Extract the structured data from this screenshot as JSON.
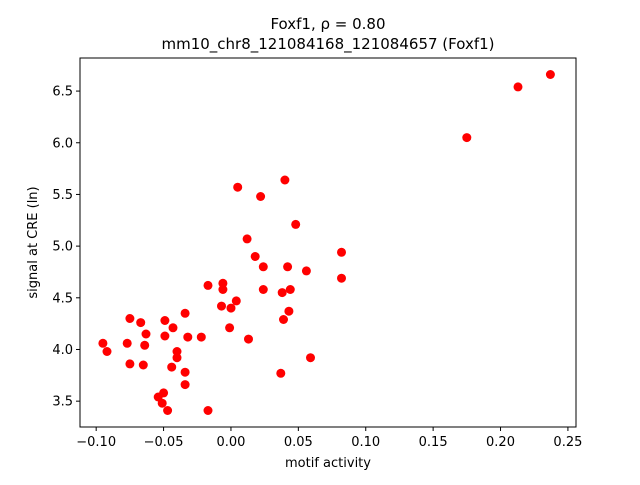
{
  "chart_data": {
    "type": "scatter",
    "title_line1": "Foxf1, ρ = 0.80",
    "title_line2": "mm10_chr8_121084168_121084657 (Foxf1)",
    "xlabel": "motif activity",
    "ylabel": "signal at CRE (ln)",
    "xlim": [
      -0.112,
      0.256
    ],
    "ylim": [
      3.25,
      6.82
    ],
    "x_ticks": [
      {
        "value": -0.1,
        "label": "−0.10"
      },
      {
        "value": -0.05,
        "label": "−0.05"
      },
      {
        "value": 0.0,
        "label": "0.00"
      },
      {
        "value": 0.05,
        "label": "0.05"
      },
      {
        "value": 0.1,
        "label": "0.10"
      },
      {
        "value": 0.15,
        "label": "0.15"
      },
      {
        "value": 0.2,
        "label": "0.20"
      },
      {
        "value": 0.25,
        "label": "0.25"
      }
    ],
    "y_ticks": [
      {
        "value": 3.5,
        "label": "3.5"
      },
      {
        "value": 4.0,
        "label": "4.0"
      },
      {
        "value": 4.5,
        "label": "4.5"
      },
      {
        "value": 5.0,
        "label": "5.0"
      },
      {
        "value": 5.5,
        "label": "5.5"
      },
      {
        "value": 6.0,
        "label": "6.0"
      },
      {
        "value": 6.5,
        "label": "6.5"
      }
    ],
    "grid": false,
    "marker_color": "#ff0000",
    "points": [
      {
        "x": 0.237,
        "y": 6.66
      },
      {
        "x": 0.213,
        "y": 6.54
      },
      {
        "x": 0.175,
        "y": 6.05
      },
      {
        "x": 0.04,
        "y": 5.64
      },
      {
        "x": 0.005,
        "y": 5.57
      },
      {
        "x": 0.022,
        "y": 5.48
      },
      {
        "x": 0.048,
        "y": 5.21
      },
      {
        "x": 0.012,
        "y": 5.07
      },
      {
        "x": 0.082,
        "y": 4.94
      },
      {
        "x": 0.018,
        "y": 4.9
      },
      {
        "x": 0.024,
        "y": 4.8
      },
      {
        "x": 0.042,
        "y": 4.8
      },
      {
        "x": 0.056,
        "y": 4.76
      },
      {
        "x": 0.082,
        "y": 4.69
      },
      {
        "x": -0.017,
        "y": 4.62
      },
      {
        "x": -0.006,
        "y": 4.64
      },
      {
        "x": -0.006,
        "y": 4.58
      },
      {
        "x": 0.024,
        "y": 4.58
      },
      {
        "x": 0.044,
        "y": 4.58
      },
      {
        "x": 0.038,
        "y": 4.55
      },
      {
        "x": 0.004,
        "y": 4.47
      },
      {
        "x": -0.007,
        "y": 4.42
      },
      {
        "x": 0.0,
        "y": 4.4
      },
      {
        "x": 0.043,
        "y": 4.37
      },
      {
        "x": -0.034,
        "y": 4.35
      },
      {
        "x": 0.039,
        "y": 4.29
      },
      {
        "x": -0.075,
        "y": 4.3
      },
      {
        "x": -0.049,
        "y": 4.28
      },
      {
        "x": -0.067,
        "y": 4.26
      },
      {
        "x": -0.043,
        "y": 4.21
      },
      {
        "x": -0.001,
        "y": 4.21
      },
      {
        "x": -0.063,
        "y": 4.15
      },
      {
        "x": -0.049,
        "y": 4.13
      },
      {
        "x": -0.032,
        "y": 4.12
      },
      {
        "x": -0.022,
        "y": 4.12
      },
      {
        "x": 0.013,
        "y": 4.1
      },
      {
        "x": -0.095,
        "y": 4.06
      },
      {
        "x": -0.077,
        "y": 4.06
      },
      {
        "x": -0.064,
        "y": 4.04
      },
      {
        "x": -0.092,
        "y": 3.98
      },
      {
        "x": -0.04,
        "y": 3.98
      },
      {
        "x": -0.04,
        "y": 3.92
      },
      {
        "x": 0.059,
        "y": 3.92
      },
      {
        "x": -0.075,
        "y": 3.86
      },
      {
        "x": -0.065,
        "y": 3.85
      },
      {
        "x": -0.044,
        "y": 3.83
      },
      {
        "x": -0.034,
        "y": 3.78
      },
      {
        "x": 0.037,
        "y": 3.77
      },
      {
        "x": -0.034,
        "y": 3.66
      },
      {
        "x": -0.05,
        "y": 3.58
      },
      {
        "x": -0.054,
        "y": 3.54
      },
      {
        "x": -0.051,
        "y": 3.48
      },
      {
        "x": -0.047,
        "y": 3.41
      },
      {
        "x": -0.017,
        "y": 3.41
      }
    ]
  }
}
